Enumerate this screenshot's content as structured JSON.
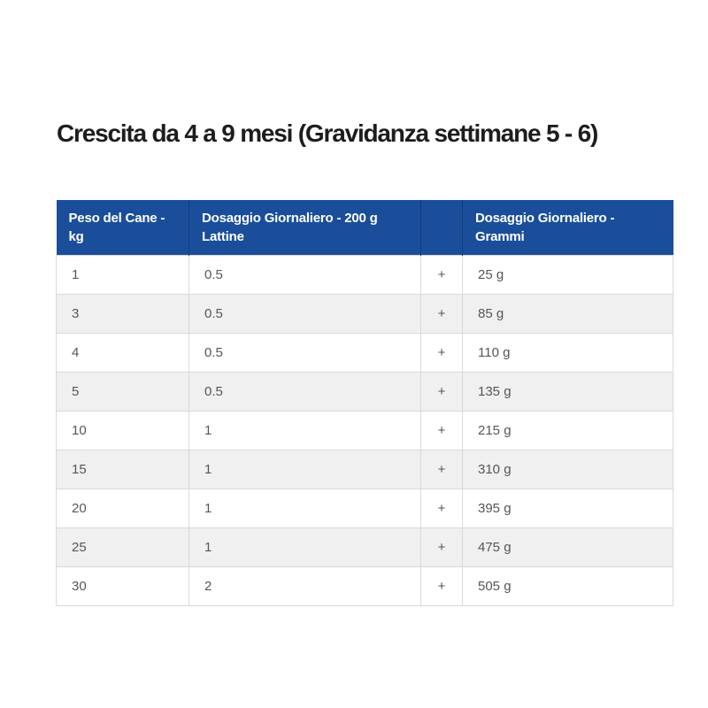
{
  "title": "Crescita da 4 a 9 mesi (Gravidanza settimane 5 - 6)",
  "table": {
    "columns": [
      {
        "label": "Peso del Cane - kg"
      },
      {
        "label": "Dosaggio Giornaliero - 200 g Lattine"
      },
      {
        "label": ""
      },
      {
        "label": "Dosaggio Giornaliero - Grammi"
      }
    ],
    "rows": [
      {
        "peso": "1",
        "lattine": "0.5",
        "plus": "+",
        "grammi": "25 g"
      },
      {
        "peso": "3",
        "lattine": "0.5",
        "plus": "+",
        "grammi": "85 g"
      },
      {
        "peso": "4",
        "lattine": "0.5",
        "plus": "+",
        "grammi": "110 g"
      },
      {
        "peso": "5",
        "lattine": "0.5",
        "plus": "+",
        "grammi": "135 g"
      },
      {
        "peso": "10",
        "lattine": "1",
        "plus": "+",
        "grammi": "215 g"
      },
      {
        "peso": "15",
        "lattine": "1",
        "plus": "+",
        "grammi": "310 g"
      },
      {
        "peso": "20",
        "lattine": "1",
        "plus": "+",
        "grammi": "395 g"
      },
      {
        "peso": "25",
        "lattine": "1",
        "plus": "+",
        "grammi": "475 g"
      },
      {
        "peso": "30",
        "lattine": "2",
        "plus": "+",
        "grammi": "505 g"
      }
    ]
  },
  "colors": {
    "page_bg": "#ffffff",
    "title_color": "#1d1d1f",
    "header_bg": "#1a4e9b",
    "header_text": "#ffffff",
    "header_divider": "#123d7a",
    "row_bg": "#ffffff",
    "row_alt_bg": "#f0f0f1",
    "border_color": "#d9d9d9",
    "cell_text": "#54565a"
  }
}
